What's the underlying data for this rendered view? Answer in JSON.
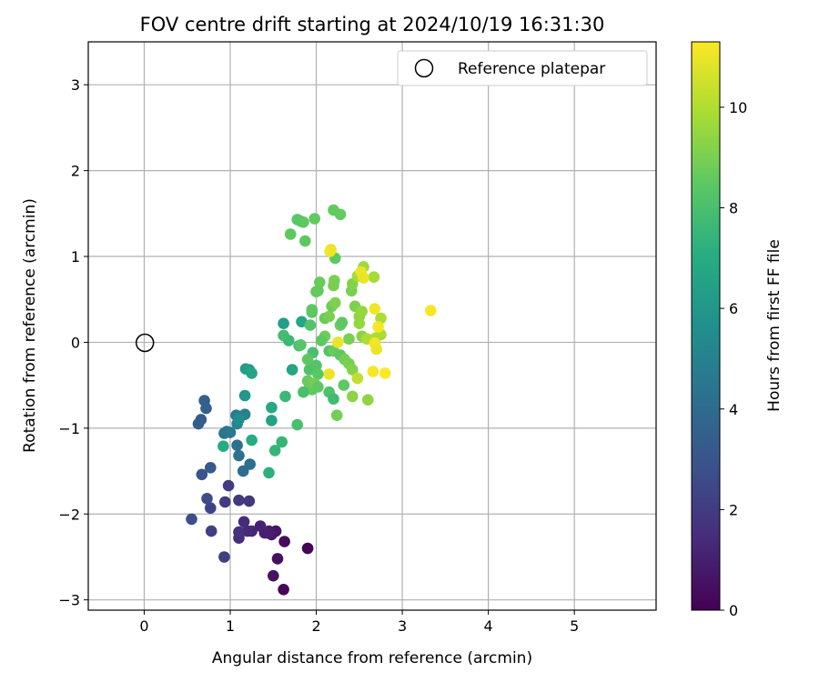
{
  "chart_data": {
    "type": "scatter",
    "title": "FOV centre drift starting at 2024/10/19 16:31:30",
    "xlabel": "Angular distance from reference (arcmin)",
    "ylabel": "Rotation from reference (arcmin)",
    "xlim": [
      -0.65,
      5.95
    ],
    "ylim": [
      -3.12,
      3.5
    ],
    "xticks": [
      0,
      1,
      2,
      3,
      4,
      5
    ],
    "yticks": [
      -3,
      -2,
      -1,
      0,
      1,
      2,
      3
    ],
    "grid": true,
    "legend": {
      "position": "top-right",
      "entries": [
        "Reference platepar"
      ]
    },
    "reference_point": {
      "x": 0,
      "y": 0,
      "label": "Reference platepar"
    },
    "colorbar": {
      "label": "Hours from first FF file",
      "min": 0,
      "max": 11.3,
      "ticks": [
        0,
        2,
        4,
        6,
        8,
        10
      ],
      "colormap": "viridis"
    },
    "series": [
      {
        "points": [
          [
            1.9,
            -2.4,
            0.1
          ],
          [
            1.63,
            -2.32,
            0.3
          ],
          [
            1.62,
            -2.88,
            0.2
          ],
          [
            1.55,
            -2.52,
            0.5
          ],
          [
            1.5,
            -2.72,
            0.6
          ],
          [
            1.53,
            -2.2,
            0.7
          ],
          [
            1.48,
            -2.24,
            0.8
          ],
          [
            1.45,
            -2.2,
            0.9
          ],
          [
            1.42,
            -2.22,
            1.0
          ],
          [
            1.4,
            -2.22,
            1.0
          ],
          [
            1.35,
            -2.14,
            1.1
          ],
          [
            1.25,
            -2.2,
            1.2
          ],
          [
            1.2,
            -2.2,
            1.3
          ],
          [
            1.16,
            -2.09,
            1.4
          ],
          [
            1.1,
            -2.28,
            1.5
          ],
          [
            1.1,
            -2.21,
            1.6
          ],
          [
            1.22,
            -1.85,
            1.8
          ],
          [
            1.1,
            -1.84,
            1.9
          ],
          [
            0.98,
            -1.67,
            2.0
          ],
          [
            0.94,
            -1.86,
            2.0
          ],
          [
            0.93,
            -2.5,
            2.1
          ],
          [
            0.78,
            -2.2,
            2.2
          ],
          [
            0.77,
            -1.93,
            2.3
          ],
          [
            0.73,
            -1.82,
            2.6
          ],
          [
            0.55,
            -2.06,
            2.8
          ],
          [
            0.67,
            -1.54,
            3.0
          ],
          [
            0.77,
            -1.46,
            3.2
          ],
          [
            0.63,
            -0.95,
            3.3
          ],
          [
            0.66,
            -0.9,
            3.3
          ],
          [
            0.7,
            -0.68,
            3.5
          ],
          [
            0.72,
            -0.77,
            3.5
          ],
          [
            1.15,
            -1.5,
            4.0
          ],
          [
            1.23,
            -1.42,
            4.2
          ],
          [
            1.08,
            -1.2,
            4.2
          ],
          [
            1.1,
            -1.32,
            4.3
          ],
          [
            0.96,
            -1.04,
            4.4
          ],
          [
            0.93,
            -1.06,
            4.4
          ],
          [
            1.0,
            -1.05,
            4.5
          ],
          [
            1.07,
            -0.85,
            4.6
          ],
          [
            1.09,
            -0.87,
            4.7
          ],
          [
            1.17,
            -0.84,
            5.0
          ],
          [
            1.08,
            -0.95,
            5.2
          ],
          [
            1.1,
            -0.9,
            5.5
          ],
          [
            1.17,
            -0.62,
            6.0
          ],
          [
            1.18,
            -0.31,
            6.3
          ],
          [
            1.22,
            -0.32,
            6.4
          ],
          [
            1.25,
            -0.36,
            6.6
          ],
          [
            1.62,
            0.22,
            6.4
          ],
          [
            1.72,
            -0.32,
            6.6
          ],
          [
            1.83,
            0.24,
            6.7
          ],
          [
            1.48,
            -0.91,
            6.5
          ],
          [
            1.48,
            -0.76,
            6.8
          ],
          [
            0.92,
            -1.21,
            7.0
          ],
          [
            1.25,
            -1.14,
            7.0
          ],
          [
            1.45,
            -1.52,
            7.2
          ],
          [
            1.52,
            -1.26,
            7.5
          ],
          [
            1.6,
            -1.16,
            7.5
          ],
          [
            1.64,
            -0.63,
            7.6
          ],
          [
            1.68,
            0.02,
            7.6
          ],
          [
            1.8,
            -0.04,
            7.9
          ],
          [
            1.78,
            -0.96,
            8.0
          ],
          [
            1.62,
            0.08,
            7.8
          ],
          [
            1.82,
            -0.03,
            8.3
          ],
          [
            1.82,
            1.41,
            8.3
          ],
          [
            1.78,
            1.43,
            8.4
          ],
          [
            1.85,
            1.4,
            8.5
          ],
          [
            1.7,
            1.26,
            8.5
          ],
          [
            1.87,
            1.18,
            8.5
          ],
          [
            1.98,
            1.44,
            8.6
          ],
          [
            2.2,
            1.54,
            8.6
          ],
          [
            2.28,
            1.49,
            8.6
          ],
          [
            2.22,
            0.98,
            8.5
          ],
          [
            1.95,
            0.35,
            8.4
          ],
          [
            1.93,
            0.2,
            8.2
          ],
          [
            1.95,
            0.38,
            8.5
          ],
          [
            1.96,
            -0.12,
            8.0
          ],
          [
            1.92,
            -0.32,
            8.1
          ],
          [
            1.95,
            -0.5,
            8.3
          ],
          [
            1.9,
            -0.2,
            8.5
          ],
          [
            1.95,
            -0.55,
            8.5
          ],
          [
            1.92,
            -0.53,
            8.6
          ],
          [
            1.85,
            -0.58,
            8.0
          ],
          [
            2.0,
            -0.27,
            8.2
          ],
          [
            2.02,
            -0.37,
            8.4
          ],
          [
            1.9,
            -0.45,
            8.7
          ],
          [
            1.98,
            -0.48,
            8.9
          ],
          [
            2.02,
            -0.52,
            8.5
          ],
          [
            2.0,
            0.59,
            8.5
          ],
          [
            2.04,
            0.7,
            8.7
          ],
          [
            2.02,
            0.6,
            8.6
          ],
          [
            2.1,
            0.28,
            8.7
          ],
          [
            2.1,
            0.07,
            8.8
          ],
          [
            2.06,
            0.02,
            8.5
          ],
          [
            2.18,
            0.42,
            8.8
          ],
          [
            2.15,
            0.3,
            9.0
          ],
          [
            2.22,
            0.46,
            9.1
          ],
          [
            2.28,
            0.2,
            8.7
          ],
          [
            2.3,
            0.23,
            8.5
          ],
          [
            2.2,
            0.66,
            9.0
          ],
          [
            2.21,
            0.72,
            9.0
          ],
          [
            2.15,
            -0.58,
            8.1
          ],
          [
            2.2,
            -0.66,
            7.8
          ],
          [
            2.24,
            -0.85,
            8.9
          ],
          [
            2.15,
            -0.1,
            8.2
          ],
          [
            2.2,
            -0.1,
            8.7
          ],
          [
            2.28,
            -0.15,
            8.5
          ],
          [
            2.32,
            -0.5,
            8.5
          ],
          [
            2.33,
            -0.2,
            8.9
          ],
          [
            2.38,
            -0.25,
            9.0
          ],
          [
            2.42,
            -0.32,
            9.2
          ],
          [
            2.42,
            -0.63,
            9.3
          ],
          [
            2.38,
            0.04,
            9.0
          ],
          [
            2.41,
            0.6,
            9.0
          ],
          [
            2.42,
            0.68,
            9.2
          ],
          [
            2.45,
            0.42,
            9.1
          ],
          [
            2.5,
            0.3,
            9.4
          ],
          [
            2.5,
            0.22,
            9.5
          ],
          [
            2.53,
            0.36,
            9.5
          ],
          [
            2.53,
            0.07,
            9.3
          ],
          [
            2.48,
            0.77,
            9.8
          ],
          [
            2.55,
            0.88,
            9.7
          ],
          [
            2.59,
            0.04,
            9.9
          ],
          [
            2.6,
            -0.67,
            9.4
          ],
          [
            2.67,
            0.76,
            9.8
          ],
          [
            2.69,
            0.05,
            10.0
          ],
          [
            2.75,
            0.09,
            9.9
          ],
          [
            2.75,
            0.28,
            9.9
          ],
          [
            2.48,
            -0.42,
            10.3
          ],
          [
            2.17,
            1.08,
            10.9
          ],
          [
            2.16,
            1.06,
            11.1
          ],
          [
            2.15,
            -0.37,
            11.0
          ],
          [
            2.25,
            0.0,
            11.0
          ],
          [
            2.52,
            0.82,
            11.0
          ],
          [
            2.55,
            0.75,
            11.0
          ],
          [
            2.66,
            -0.34,
            11.2
          ],
          [
            2.68,
            0.39,
            11.1
          ],
          [
            2.68,
            -0.01,
            11.2
          ],
          [
            2.7,
            -0.08,
            11.0
          ],
          [
            2.72,
            0.18,
            11.2
          ],
          [
            2.8,
            -0.36,
            11.3
          ],
          [
            3.33,
            0.37,
            11.2
          ]
        ]
      }
    ]
  }
}
